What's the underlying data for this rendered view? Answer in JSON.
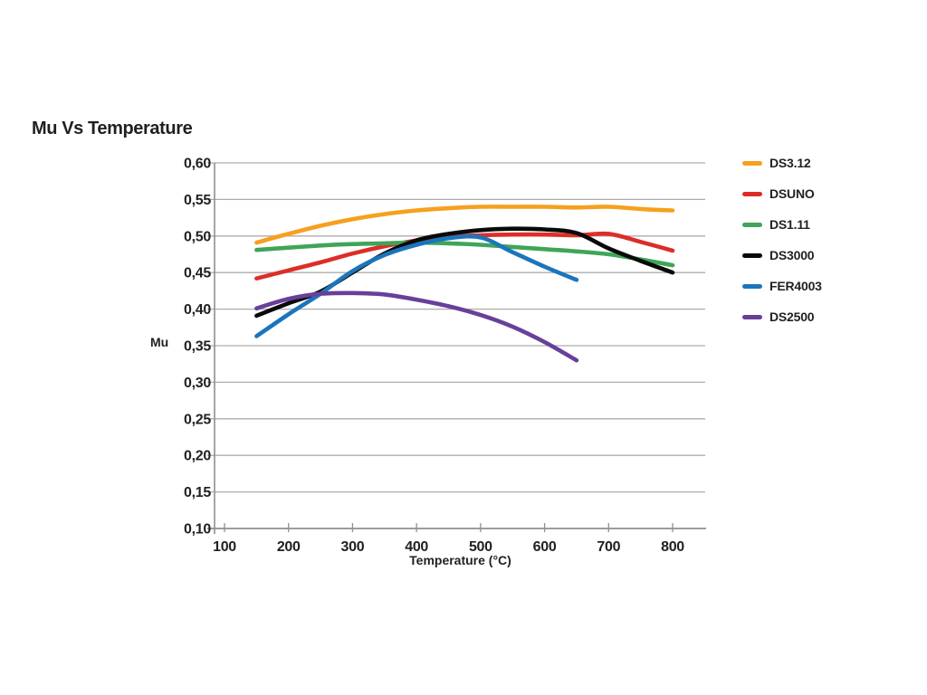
{
  "palette": {
    "text": "#231F20",
    "grid": "#ADADAD",
    "axis": "#8F8F8F",
    "background": "#FFFFFF"
  },
  "chart_data": {
    "type": "line",
    "title": "Mu Vs Temperature",
    "xlabel": "Temperature (°C)",
    "ylabel": "Mu",
    "xlim": [
      80,
      855
    ],
    "ylim": [
      0.1,
      0.6
    ],
    "grid": true,
    "legend_position": "right",
    "decimal_separator": ",",
    "x_ticks": [
      {
        "v": 100,
        "label": "100"
      },
      {
        "v": 200,
        "label": "200"
      },
      {
        "v": 300,
        "label": "300"
      },
      {
        "v": 400,
        "label": "400"
      },
      {
        "v": 500,
        "label": "500"
      },
      {
        "v": 600,
        "label": "600"
      },
      {
        "v": 700,
        "label": "700"
      },
      {
        "v": 800,
        "label": "800"
      }
    ],
    "y_ticks": [
      {
        "v": 0.6,
        "label": "0,60"
      },
      {
        "v": 0.55,
        "label": "0,55"
      },
      {
        "v": 0.5,
        "label": "0,50"
      },
      {
        "v": 0.45,
        "label": "0,45"
      },
      {
        "v": 0.4,
        "label": "0,40"
      },
      {
        "v": 0.35,
        "label": "0,35"
      },
      {
        "v": 0.3,
        "label": "0,30"
      },
      {
        "v": 0.25,
        "label": "0,25"
      },
      {
        "v": 0.2,
        "label": "0,20"
      },
      {
        "v": 0.15,
        "label": "0,15"
      },
      {
        "v": 0.1,
        "label": "0,10"
      }
    ],
    "series": [
      {
        "name": "DS3.12",
        "color": "#F6A01E",
        "x": [
          150,
          200,
          250,
          300,
          350,
          400,
          450,
          500,
          550,
          600,
          650,
          700,
          750,
          800
        ],
        "values": [
          0.491,
          0.503,
          0.514,
          0.523,
          0.53,
          0.535,
          0.538,
          0.54,
          0.54,
          0.54,
          0.539,
          0.54,
          0.537,
          0.535
        ]
      },
      {
        "name": "DSUNO",
        "color": "#DC2E27",
        "x": [
          150,
          200,
          250,
          300,
          350,
          400,
          450,
          500,
          550,
          600,
          650,
          700,
          750,
          800
        ],
        "values": [
          0.442,
          0.453,
          0.464,
          0.476,
          0.486,
          0.494,
          0.499,
          0.501,
          0.502,
          0.502,
          0.501,
          0.503,
          0.492,
          0.48
        ]
      },
      {
        "name": "DS1.11",
        "color": "#3FA558",
        "x": [
          150,
          200,
          250,
          300,
          350,
          400,
          450,
          500,
          550,
          600,
          650,
          700,
          750,
          800
        ],
        "values": [
          0.481,
          0.484,
          0.487,
          0.489,
          0.49,
          0.491,
          0.49,
          0.488,
          0.485,
          0.482,
          0.479,
          0.475,
          0.468,
          0.46
        ]
      },
      {
        "name": "DS3000",
        "color": "#0A0A0A",
        "x": [
          150,
          200,
          250,
          300,
          350,
          400,
          450,
          500,
          550,
          600,
          650,
          700,
          750,
          800
        ],
        "values": [
          0.391,
          0.408,
          0.424,
          0.45,
          0.476,
          0.494,
          0.503,
          0.508,
          0.51,
          0.509,
          0.504,
          0.483,
          0.466,
          0.45
        ]
      },
      {
        "name": "FER4003",
        "color": "#1B75BC",
        "x": [
          150,
          200,
          250,
          300,
          350,
          400,
          450,
          500,
          550,
          600,
          650
        ],
        "values": [
          0.363,
          0.393,
          0.421,
          0.452,
          0.474,
          0.488,
          0.497,
          0.498,
          0.478,
          0.458,
          0.44
        ]
      },
      {
        "name": "DS2500",
        "color": "#68409A",
        "x": [
          150,
          200,
          250,
          300,
          350,
          400,
          450,
          500,
          550,
          600,
          650
        ],
        "values": [
          0.401,
          0.414,
          0.421,
          0.422,
          0.42,
          0.413,
          0.404,
          0.392,
          0.376,
          0.355,
          0.33
        ]
      }
    ]
  }
}
